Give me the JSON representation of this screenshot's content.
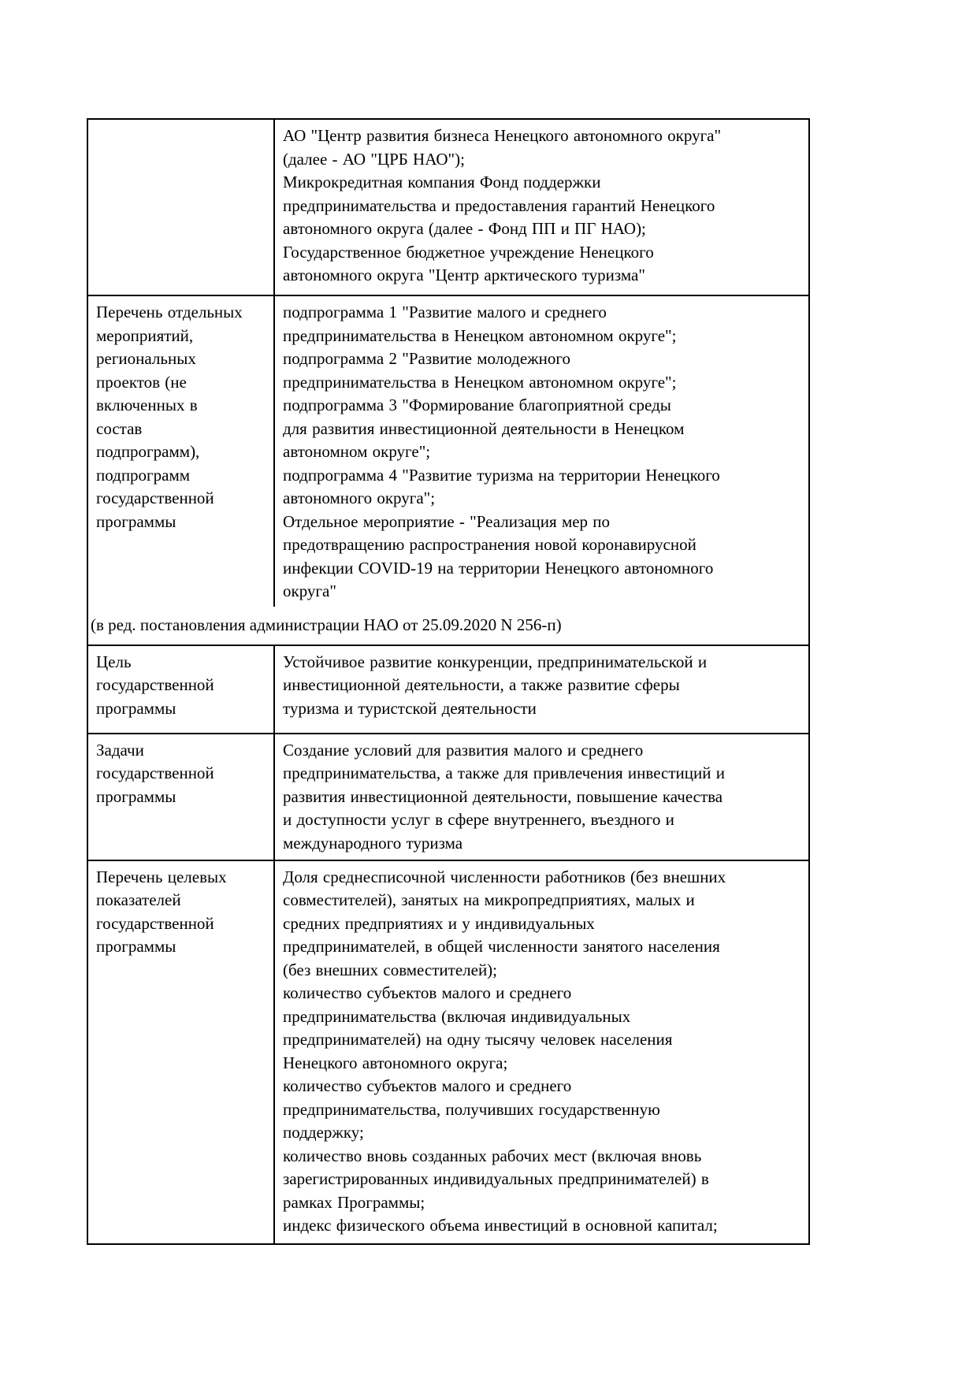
{
  "table": {
    "rows": [
      {
        "left": "",
        "right": "АО \"Центр развития бизнеса Ненецкого автономного округа\"\n(далее - АО \"ЦРБ НАО\");\nМикрокредитная компания Фонд поддержки\nпредпринимательства и предоставления гарантий Ненецкого\nавтономного округа (далее - Фонд ПП и ПГ НАО);\nГосударственное бюджетное учреждение Ненецкого\nавтономного округа \"Центр арктического туризма\""
      },
      {
        "left": "Перечень отдельных\nмероприятий,\nрегиональных\nпроектов (не\nвключенных в\nсостав\nподпрограмм),\nподпрограмм\nгосударственной\nпрограммы",
        "right": "подпрограмма 1 \"Развитие малого и среднего\nпредпринимательства в Ненецком автономном округе\";\nподпрограмма 2 \"Развитие молодежного\nпредпринимательства в Ненецком автономном округе\";\nподпрограмма 3 \"Формирование благоприятной среды\nдля развития инвестиционной деятельности в Ненецком\nавтономном округе\";\nподпрограмма 4 \"Развитие туризма на территории Ненецкого\nавтономного округа\";\nОтдельное мероприятие - \"Реализация мер по\nпредотвращению распространения новой коронавирусной\nинфекции COVID-19 на территории Ненецкого автономного\nокруга\""
      },
      {
        "left": "Цель\nгосударственной\nпрограммы",
        "right": "Устойчивое развитие конкуренции, предпринимательской и\nинвестиционной деятельности, а также развитие сферы\nтуризма и туристской деятельности"
      },
      {
        "left": "Задачи\nгосударственной\nпрограммы",
        "right": "Создание условий для развития малого и среднего\nпредпринимательства, а также для привлечения инвестиций и\nразвития инвестиционной деятельности, повышение качества\nи доступности услуг в сфере внутреннего, въездного и\nмеждународного туризма"
      },
      {
        "left": "Перечень целевых\nпоказателей\nгосударственной\nпрограммы",
        "right": "Доля среднесписочной численности работников (без внешних\nсовместителей), занятых на микропредприятиях, малых и\nсредних предприятиях и у индивидуальных\nпредпринимателей, в общей численности занятого населения\n(без внешних совместителей);\nколичество субъектов малого и среднего\nпредпринимательства (включая индивидуальных\nпредпринимателей) на одну тысячу человек населения\nНенецкого автономного округа;\nколичество субъектов малого и среднего\nпредпринимательства, получивших государственную\nподдержку;\nколичество вновь созданных рабочих мест (включая вновь\nзарегистрированных индивидуальных предпринимателей) в\nрамках Программы;\nиндекс физического объема инвестиций в основной капитал;"
      }
    ],
    "amendment_note": "(в ред. постановления администрации НАО от 25.09.2020 N 256-п)"
  },
  "colors": {
    "text": "#000000",
    "border": "#000000",
    "background": "#ffffff"
  }
}
